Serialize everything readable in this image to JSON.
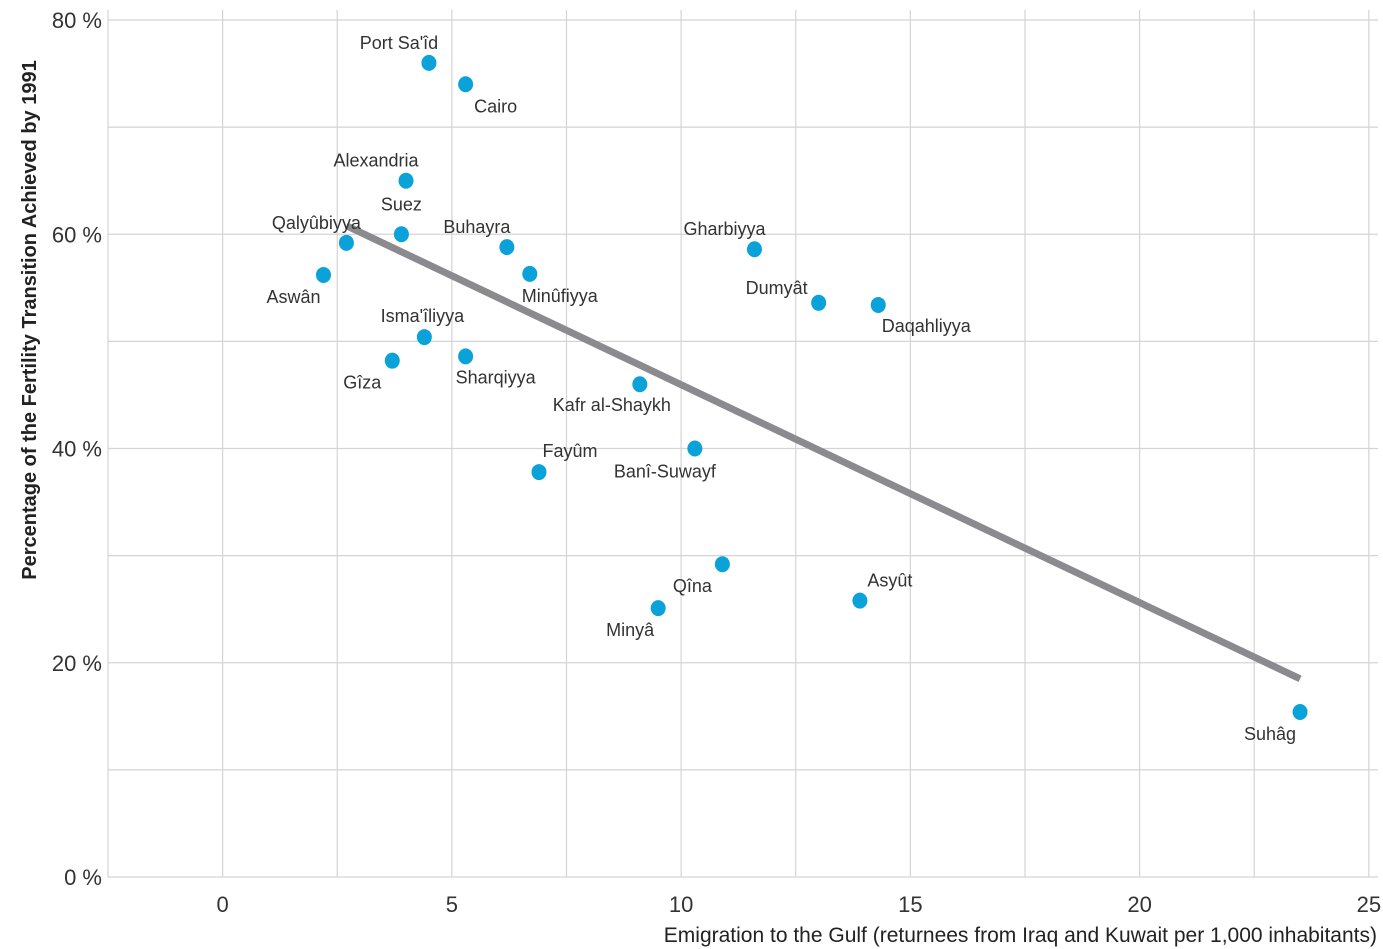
{
  "chart_data": {
    "type": "scatter",
    "title": "",
    "xlabel": "Emigration to the Gulf (returnees from Iraq and Kuwait per 1,000 inhabitants)",
    "ylabel": "Percentage of the Fertility Transition Achieved by 1991",
    "xlim": [
      -2.5,
      25.2
    ],
    "ylim": [
      0,
      80
    ],
    "x_ticks": [
      "0",
      "5",
      "10",
      "15",
      "20",
      "25"
    ],
    "y_ticks": [
      "0 %",
      "20 %",
      "40 %",
      "60 %",
      "80 %"
    ],
    "grid": true,
    "point_color": "#0aa2d8",
    "trend_color": "#8a8a8f",
    "points": [
      {
        "label": "Port Sa'îd",
        "x": 4.5,
        "y": 76.0
      },
      {
        "label": "Cairo",
        "x": 5.3,
        "y": 74.0
      },
      {
        "label": "Alexandria",
        "x": 4.0,
        "y": 65.0
      },
      {
        "label": "Suez",
        "x": 3.9,
        "y": 60.0
      },
      {
        "label": "Qalyûbiyya",
        "x": 2.7,
        "y": 59.2
      },
      {
        "label": "Aswân",
        "x": 2.2,
        "y": 56.2
      },
      {
        "label": "Buhayra",
        "x": 6.2,
        "y": 58.8
      },
      {
        "label": "Minûfiyya",
        "x": 6.7,
        "y": 56.3
      },
      {
        "label": "Gharbiyya",
        "x": 11.6,
        "y": 58.6
      },
      {
        "label": "Dumyât",
        "x": 13.0,
        "y": 53.6
      },
      {
        "label": "Daqahliyya",
        "x": 14.3,
        "y": 53.4
      },
      {
        "label": "Isma'îliyya",
        "x": 4.4,
        "y": 50.4
      },
      {
        "label": "Gîza",
        "x": 3.7,
        "y": 48.2
      },
      {
        "label": "Sharqiyya",
        "x": 5.3,
        "y": 48.6
      },
      {
        "label": "Kafr al-Shaykh",
        "x": 9.1,
        "y": 46.0
      },
      {
        "label": "Fayûm",
        "x": 6.9,
        "y": 37.8
      },
      {
        "label": "Banî-Suwayf",
        "x": 10.3,
        "y": 40.0
      },
      {
        "label": "Qîna",
        "x": 10.9,
        "y": 29.2
      },
      {
        "label": "Minyâ",
        "x": 9.5,
        "y": 25.1
      },
      {
        "label": "Asyût",
        "x": 13.9,
        "y": 25.8
      },
      {
        "label": "Suhâg",
        "x": 23.5,
        "y": 15.4
      }
    ],
    "trendline": {
      "x": [
        2.7,
        23.5
      ],
      "y": [
        60.8,
        18.5
      ]
    }
  }
}
